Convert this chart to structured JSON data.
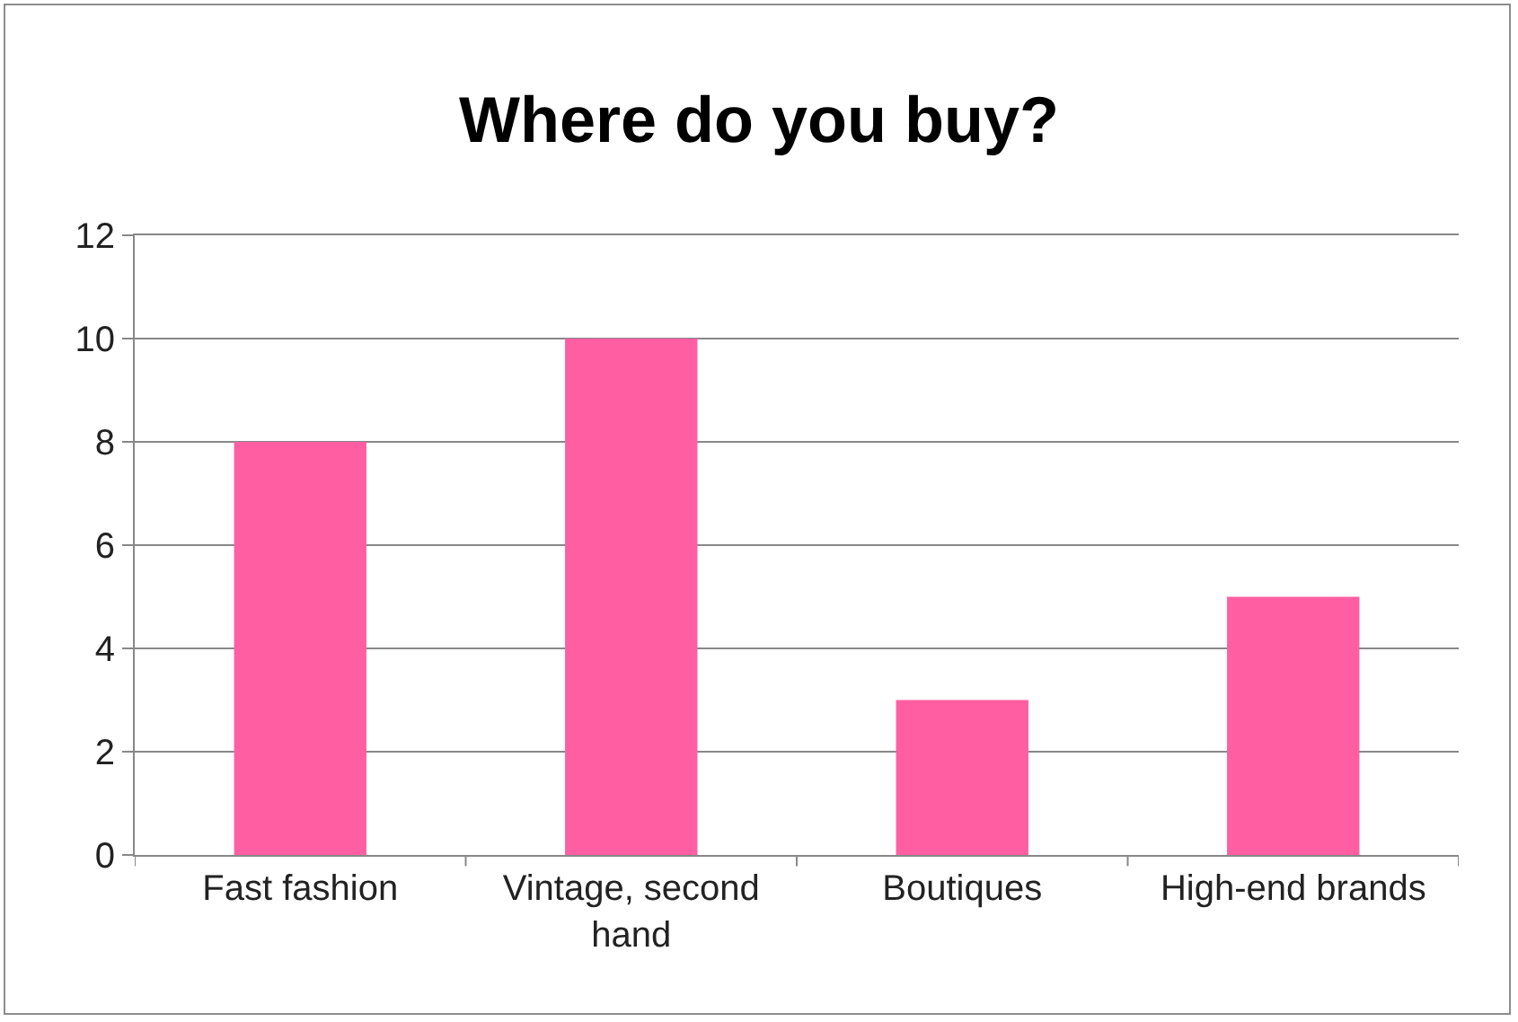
{
  "chart_data": {
    "type": "bar",
    "title": "Where do you buy?",
    "categories": [
      "Fast fashion",
      "Vintage, second hand",
      "Boutiques",
      "High-end brands"
    ],
    "values": [
      8,
      10,
      3,
      5
    ],
    "color": "#ff5fa2",
    "ylim": [
      0,
      12
    ],
    "yticks": [
      0,
      2,
      4,
      6,
      8,
      10,
      12
    ],
    "grid": "y"
  }
}
